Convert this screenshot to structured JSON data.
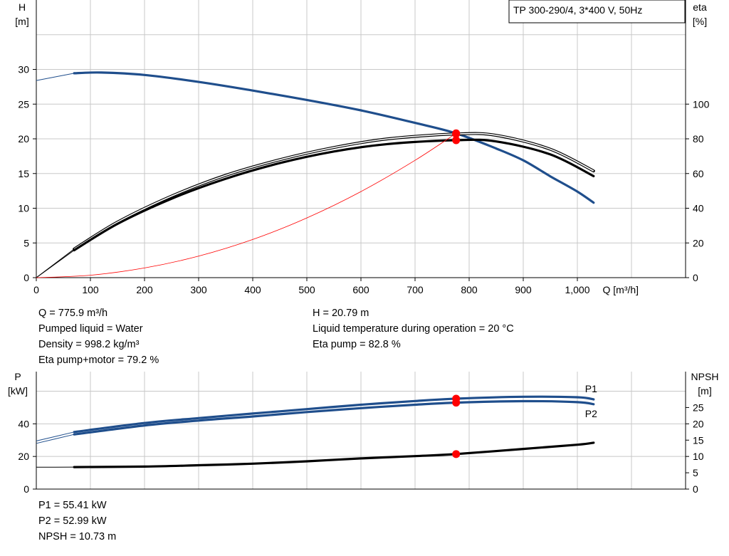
{
  "chart_data": [
    {
      "type": "line",
      "legend": "TP 300-290/4, 3*400 V, 50Hz",
      "x_axis": {
        "label": "Q [m³/h]",
        "range": [
          0,
          1200
        ],
        "ticks": [
          0,
          100,
          200,
          300,
          400,
          500,
          600,
          700,
          800,
          900,
          1000
        ],
        "tick_labels": [
          "0",
          "100",
          "200",
          "300",
          "400",
          "500",
          "600",
          "700",
          "800",
          "900",
          "1,000"
        ]
      },
      "y_axis_left": {
        "label_line1": "H",
        "label_line2": "[m]",
        "range": [
          0,
          40
        ],
        "ticks": [
          0,
          5,
          10,
          15,
          20,
          25,
          30
        ]
      },
      "y_axis_right": {
        "label_line1": "eta",
        "label_line2": "[%]",
        "range": [
          0,
          160
        ],
        "ticks": [
          0,
          20,
          40,
          60,
          80,
          100
        ]
      },
      "grid": true,
      "series": [
        {
          "axis": "left",
          "color": "#1f4e8c",
          "points": [
            [
              0,
              28.4
            ],
            [
              70,
              29.45
            ],
            [
              120,
              29.55
            ],
            [
              200,
              29.2
            ],
            [
              300,
              28.2
            ],
            [
              400,
              26.95
            ],
            [
              500,
              25.6
            ],
            [
              600,
              24.1
            ],
            [
              700,
              22.3
            ],
            [
              775.9,
              20.79
            ],
            [
              850,
              18.6
            ],
            [
              900,
              16.9
            ],
            [
              950,
              14.6
            ],
            [
              1000,
              12.4
            ],
            [
              1030,
              10.8
            ]
          ]
        },
        {
          "axis": "right",
          "color": "#000000",
          "points": [
            [
              0,
              0
            ],
            [
              70,
              16.5
            ],
            [
              150,
              32
            ],
            [
              250,
              47
            ],
            [
              350,
              59
            ],
            [
              450,
              68
            ],
            [
              550,
              75
            ],
            [
              650,
              80
            ],
            [
              775.9,
              82.8
            ],
            [
              850,
              82
            ],
            [
              950,
              74
            ],
            [
              1030,
              61.5
            ]
          ]
        },
        {
          "axis": "right",
          "color": "#000000",
          "points": [
            [
              0,
              0
            ],
            [
              70,
              15.8
            ],
            [
              150,
              31
            ],
            [
              250,
              45.5
            ],
            [
              350,
              57
            ],
            [
              450,
              66
            ],
            [
              550,
              72.7
            ],
            [
              650,
              77
            ],
            [
              775.9,
              79.2
            ],
            [
              850,
              78.5
            ],
            [
              950,
              71
            ],
            [
              1030,
              58.5
            ]
          ]
        },
        {
          "axis": "left",
          "color": "#ff0000",
          "points": [
            [
              0,
              0
            ],
            [
              100,
              0.35
            ],
            [
              200,
              1.4
            ],
            [
              300,
              3.1
            ],
            [
              400,
              5.5
            ],
            [
              500,
              8.6
            ],
            [
              600,
              12.4
            ],
            [
              700,
              16.9
            ],
            [
              775.9,
              20.79
            ]
          ]
        }
      ],
      "operating_point": {
        "x": 775.9,
        "y": 20.79,
        "eta_pump": 82.8,
        "eta_pump_motor": 79.2
      }
    },
    {
      "type": "line",
      "x_range": [
        0,
        1200
      ],
      "y_axis_left": {
        "label_line1": "P",
        "label_line2": "[kW]",
        "range": [
          0,
          72
        ],
        "ticks": [
          0,
          20,
          40
        ]
      },
      "y_axis_right": {
        "label_line1": "NPSH",
        "label_line2": "[m]",
        "range": [
          0,
          36
        ],
        "ticks": [
          0,
          5,
          10,
          15,
          20,
          25
        ]
      },
      "grid": true,
      "series": [
        {
          "name": "P1",
          "axis": "left",
          "color": "#1f4e8c",
          "points": [
            [
              0,
              29.5
            ],
            [
              70,
              35
            ],
            [
              200,
              40.5
            ],
            [
              300,
              43.5
            ],
            [
              400,
              46.3
            ],
            [
              500,
              49
            ],
            [
              600,
              51.7
            ],
            [
              700,
              54
            ],
            [
              775.9,
              55.41
            ],
            [
              900,
              56.6
            ],
            [
              1000,
              56.3
            ],
            [
              1030,
              55
            ]
          ]
        },
        {
          "name": "P2",
          "axis": "left",
          "color": "#1f4e8c",
          "points": [
            [
              0,
              28
            ],
            [
              70,
              33.5
            ],
            [
              200,
              39
            ],
            [
              300,
              42
            ],
            [
              400,
              44.5
            ],
            [
              500,
              47.2
            ],
            [
              600,
              49.6
            ],
            [
              700,
              51.7
            ],
            [
              775.9,
              52.99
            ],
            [
              900,
              53.9
            ],
            [
              1000,
              53.3
            ],
            [
              1030,
              52
            ]
          ]
        },
        {
          "axis": "right",
          "color": "#000000",
          "points": [
            [
              0,
              6.7
            ],
            [
              70,
              6.75
            ],
            [
              200,
              6.9
            ],
            [
              300,
              7.3
            ],
            [
              400,
              7.8
            ],
            [
              500,
              8.5
            ],
            [
              600,
              9.4
            ],
            [
              700,
              10.1
            ],
            [
              775.9,
              10.73
            ],
            [
              900,
              12.3
            ],
            [
              1000,
              13.6
            ],
            [
              1030,
              14.2
            ]
          ]
        }
      ],
      "operating_points": [
        {
          "series": "P1",
          "x": 775.9,
          "y": 55.41
        },
        {
          "series": "P2",
          "x": 775.9,
          "y": 52.99
        },
        {
          "series": "NPSH",
          "x": 775.9,
          "y": 10.73
        }
      ]
    }
  ],
  "info_top_left": [
    "Q = 775.9 m³/h",
    "Pumped liquid = Water",
    "Density = 998.2 kg/m³",
    "Eta pump+motor = 79.2 %"
  ],
  "info_top_right": [
    "H = 20.79 m",
    "Liquid temperature during operation = 20 °C",
    "Eta pump = 82.8 %"
  ],
  "info_bottom": [
    "P1 = 55.41 kW",
    "P2 = 52.99 kW",
    "NPSH = 10.73 m"
  ],
  "colors": {
    "blue": "#1f4e8c",
    "black": "#000000",
    "red": "#ff0000",
    "grid": "#c8c8c8"
  }
}
